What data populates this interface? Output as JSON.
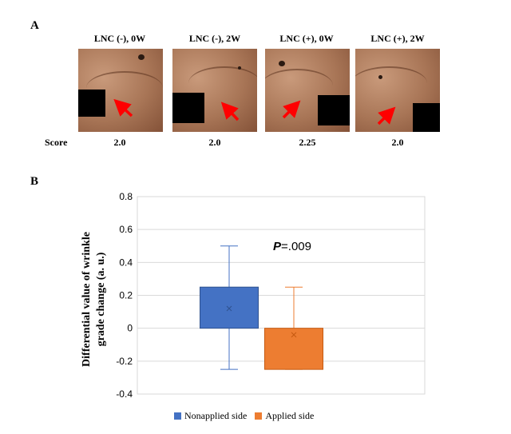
{
  "panel_a": {
    "letter": "A",
    "photos": [
      {
        "label": "LNC (-), 0W",
        "score": "2.0"
      },
      {
        "label": "LNC (-), 2W",
        "score": "2.0"
      },
      {
        "label": "LNC (+), 0W",
        "score": "2.25"
      },
      {
        "label": "LNC (+), 2W",
        "score": "2.0"
      }
    ],
    "score_label": "Score"
  },
  "panel_b": {
    "letter": "B"
  },
  "colors": {
    "nonapplied": "#4472c4",
    "applied": "#ed7d31",
    "arrow": "#ff0000",
    "grid": "#d9d9d9"
  },
  "chart_data": {
    "type": "bar",
    "categories": [
      "Nonapplied side",
      "Applied side"
    ],
    "series": [
      {
        "name": "Nonapplied side",
        "bar_low": 0,
        "bar_high": 0.25,
        "whisker_low": -0.25,
        "whisker_high": 0.5,
        "mean": 0.12
      },
      {
        "name": "Applied side",
        "bar_low": -0.25,
        "bar_high": 0,
        "whisker_low": -0.25,
        "whisker_high": 0.25,
        "mean": -0.04
      }
    ],
    "ylabel_line1": "Differential value of wrinkle",
    "ylabel_line2": "grade change (a. u.)",
    "ylim": [
      -0.4,
      0.8
    ],
    "yticks": [
      -0.4,
      -0.2,
      0,
      0.2,
      0.4,
      0.6,
      0.8
    ],
    "ytick_labels": [
      "-0.4",
      "-0.2",
      "0",
      "0.2",
      "0.4",
      "0.6",
      "0.8"
    ],
    "annotation_p": "P",
    "annotation_rest": "=.009",
    "grid": true,
    "legend_position": "bottom"
  }
}
